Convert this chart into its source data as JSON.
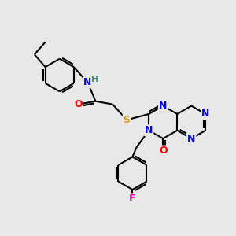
{
  "background_color": "#e8e8e8",
  "atom_colors": {
    "N": "#0000FF",
    "O": "#FF0000",
    "S": "#DAA520",
    "F": "#FF00CC",
    "H": "#4A9090",
    "C": "#000000"
  },
  "lw": 1.5,
  "r": 20,
  "fontsize": 9
}
